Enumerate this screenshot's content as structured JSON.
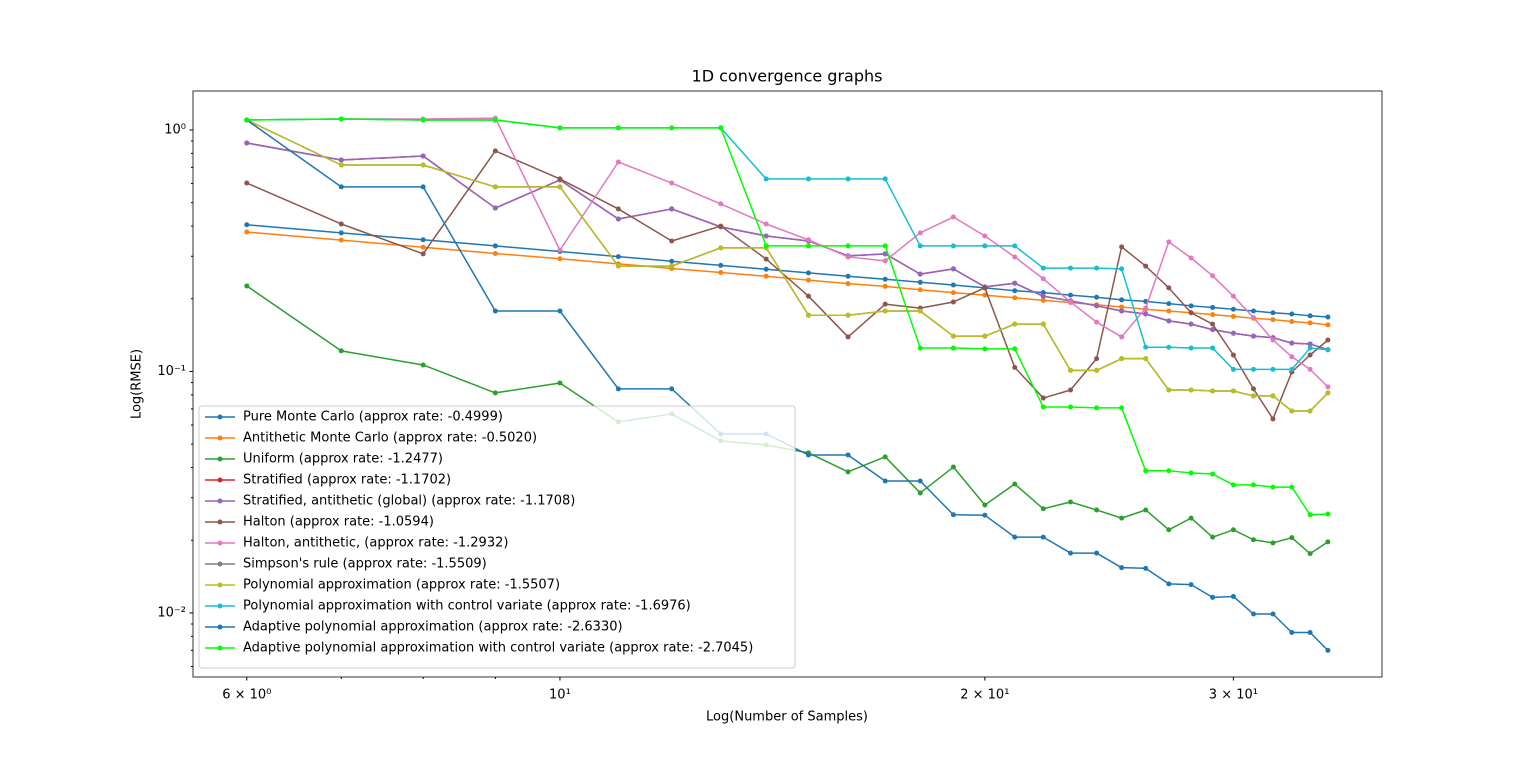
{
  "chart_data": {
    "type": "line",
    "title": "1D convergence graphs",
    "x_label": "Log(Number of Samples)",
    "y_label": "Log(RMSE)",
    "x_scale": "log",
    "y_scale": "log",
    "legend": "lower left",
    "x": [
      6,
      7,
      8,
      9,
      10,
      11,
      12,
      13,
      14,
      15,
      16,
      17,
      18,
      19,
      20,
      21,
      22,
      23,
      24,
      25,
      26,
      27,
      28,
      29,
      30,
      31,
      32,
      33,
      34,
      35
    ],
    "xlim": [
      5.496,
      38.23
    ],
    "ylim": [
      0.00543,
      1.45
    ],
    "xticks": [
      {
        "value": 6,
        "label": "6 × 10⁰"
      },
      {
        "value": 10,
        "label": "10¹"
      },
      {
        "value": 20,
        "label": "2 × 10¹"
      },
      {
        "value": 30,
        "label": "3 × 10¹"
      }
    ],
    "xminorticks": [
      7,
      8,
      9
    ],
    "yticks": [
      {
        "value": 0.01,
        "label": "10⁻²"
      },
      {
        "value": 0.1,
        "label": "10⁻¹"
      },
      {
        "value": 1,
        "label": "10⁰"
      }
    ],
    "yminorticks": [
      0.006,
      0.007,
      0.008,
      0.009,
      0.02,
      0.03,
      0.04,
      0.05,
      0.06,
      0.07,
      0.08,
      0.09,
      0.2,
      0.3,
      0.4,
      0.5,
      0.6,
      0.7,
      0.8,
      0.9
    ],
    "series": [
      {
        "name": "Pure Monte Carlo (approx rate: -0.4999)",
        "color": "#1f77b4",
        "values": [
          0.405,
          0.375,
          0.351,
          0.331,
          0.314,
          0.299,
          0.286,
          0.275,
          0.265,
          0.256,
          0.248,
          0.241,
          0.234,
          0.228,
          0.222,
          0.216,
          0.212,
          0.207,
          0.203,
          0.198,
          0.195,
          0.191,
          0.187,
          0.184,
          0.181,
          0.178,
          0.175,
          0.173,
          0.17,
          0.168
        ]
      },
      {
        "name": "Antithetic Monte Carlo (approx rate: -0.5020)",
        "color": "#ff7f0e",
        "values": [
          0.378,
          0.35,
          0.327,
          0.308,
          0.293,
          0.279,
          0.267,
          0.257,
          0.248,
          0.239,
          0.231,
          0.225,
          0.218,
          0.212,
          0.207,
          0.202,
          0.197,
          0.193,
          0.189,
          0.185,
          0.181,
          0.178,
          0.175,
          0.172,
          0.169,
          0.166,
          0.164,
          0.161,
          0.159,
          0.156
        ]
      },
      {
        "name": "Uniform (approx rate: -1.2477)",
        "color": "#2ca02c",
        "values": [
          0.226,
          0.1217,
          0.1064,
          0.0815,
          0.0896,
          0.0618,
          0.0667,
          0.0516,
          0.0496,
          0.046,
          0.0384,
          0.0443,
          0.0314,
          0.0402,
          0.028,
          0.0342,
          0.027,
          0.0288,
          0.0267,
          0.0247,
          0.0267,
          0.0221,
          0.0247,
          0.0206,
          0.0221,
          0.0201,
          0.0195,
          0.0205,
          0.0176,
          0.0197
        ]
      },
      {
        "name": "Stratified (approx rate: -1.1702)",
        "color": "#d62728",
        "values": [
          0.883,
          0.751,
          0.78,
          0.475,
          0.621,
          0.428,
          0.471,
          0.397,
          0.364,
          0.347,
          0.301,
          0.307,
          0.253,
          0.266,
          0.224,
          0.232,
          0.205,
          0.196,
          0.187,
          0.178,
          0.173,
          0.162,
          0.157,
          0.149,
          0.144,
          0.14,
          0.138,
          0.131,
          0.13,
          0.123
        ]
      },
      {
        "name": "Stratified, antithetic (global) (approx rate: -1.1708)",
        "color": "#9467bd",
        "values": [
          0.883,
          0.751,
          0.78,
          0.475,
          0.621,
          0.428,
          0.471,
          0.397,
          0.364,
          0.347,
          0.301,
          0.307,
          0.253,
          0.266,
          0.224,
          0.232,
          0.205,
          0.196,
          0.187,
          0.178,
          0.173,
          0.162,
          0.157,
          0.149,
          0.144,
          0.14,
          0.138,
          0.131,
          0.13,
          0.123
        ]
      },
      {
        "name": "Halton (approx rate: -1.0594)",
        "color": "#8c564b",
        "values": [
          0.603,
          0.408,
          0.307,
          0.819,
          0.627,
          0.471,
          0.347,
          0.4,
          0.292,
          0.205,
          0.139,
          0.19,
          0.183,
          0.194,
          0.222,
          0.104,
          0.0776,
          0.0838,
          0.113,
          0.328,
          0.273,
          0.222,
          0.175,
          0.157,
          0.117,
          0.0847,
          0.0636,
          0.0995,
          0.117,
          0.135
        ]
      },
      {
        "name": "Halton, antithetic, (approx rate: -1.2932)",
        "color": "#e377c2",
        "values": [
          1.1,
          1.11,
          1.11,
          1.12,
          0.318,
          0.737,
          0.603,
          0.494,
          0.408,
          0.351,
          0.298,
          0.287,
          0.375,
          0.436,
          0.364,
          0.298,
          0.242,
          0.194,
          0.16,
          0.139,
          0.183,
          0.344,
          0.295,
          0.249,
          0.205,
          0.167,
          0.135,
          0.115,
          0.102,
          0.0863
        ]
      },
      {
        "name": "Simpson's rule (approx rate: -1.5509)",
        "color": "#7f7f7f",
        "values": [
          1.1,
          0.716,
          0.716,
          0.581,
          0.581,
          0.273,
          0.273,
          0.325,
          0.325,
          0.171,
          0.171,
          0.178,
          0.178,
          0.14,
          0.14,
          0.157,
          0.157,
          0.101,
          0.101,
          0.113,
          0.113,
          0.0838,
          0.0838,
          0.083,
          0.083,
          0.0792,
          0.0792,
          0.0686,
          0.0686,
          0.0815
        ]
      },
      {
        "name": "Polynomial approximation (approx rate: -1.5507)",
        "color": "#bcbd22",
        "values": [
          1.1,
          0.716,
          0.716,
          0.581,
          0.581,
          0.273,
          0.273,
          0.325,
          0.325,
          0.171,
          0.171,
          0.178,
          0.178,
          0.14,
          0.14,
          0.157,
          0.157,
          0.101,
          0.101,
          0.113,
          0.113,
          0.0838,
          0.0838,
          0.083,
          0.083,
          0.0792,
          0.0792,
          0.0686,
          0.0686,
          0.0815
        ]
      },
      {
        "name": "Polynomial approximation with control variate (approx rate: -1.6976)",
        "color": "#17becf",
        "values": [
          1.1,
          1.11,
          1.1,
          1.1,
          1.02,
          1.02,
          1.02,
          1.02,
          0.627,
          0.627,
          0.627,
          0.627,
          0.331,
          0.331,
          0.331,
          0.331,
          0.268,
          0.268,
          0.268,
          0.266,
          0.126,
          0.126,
          0.125,
          0.125,
          0.102,
          0.102,
          0.102,
          0.102,
          0.125,
          0.123
        ]
      },
      {
        "name": "Adaptive polynomial approximation (approx rate: -2.6330)",
        "color": "#1f77b4",
        "values": [
          1.1,
          0.581,
          0.581,
          0.178,
          0.178,
          0.0847,
          0.0847,
          0.0551,
          0.0551,
          0.0451,
          0.0451,
          0.0352,
          0.0352,
          0.0255,
          0.0254,
          0.0206,
          0.0206,
          0.0177,
          0.0177,
          0.0154,
          0.0153,
          0.0132,
          0.0131,
          0.0116,
          0.0117,
          0.0099,
          0.0099,
          0.0083,
          0.0083,
          0.007
        ]
      },
      {
        "name": "Adaptive polynomial approximation with control variate (approx rate: -2.7045)",
        "color": "#00ff00",
        "values": [
          1.1,
          1.11,
          1.1,
          1.1,
          1.02,
          1.02,
          1.02,
          1.02,
          0.331,
          0.331,
          0.331,
          0.331,
          0.125,
          0.125,
          0.124,
          0.124,
          0.0713,
          0.0713,
          0.0707,
          0.0707,
          0.0388,
          0.0388,
          0.038,
          0.0376,
          0.0339,
          0.0339,
          0.0332,
          0.0332,
          0.0255,
          0.0257
        ]
      }
    ]
  }
}
